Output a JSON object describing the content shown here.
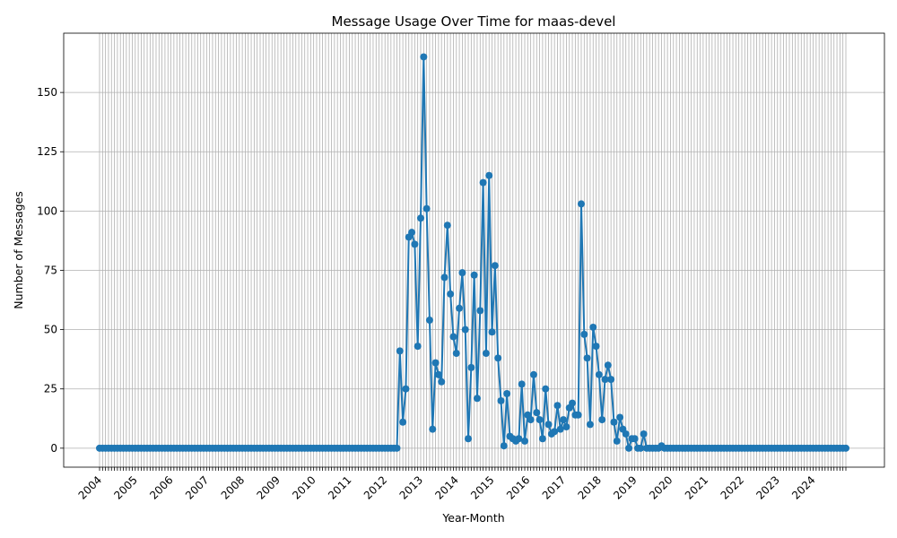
{
  "chart_data": {
    "type": "line",
    "title": "Message Usage Over Time for maas-devel",
    "xlabel": "Year-Month",
    "ylabel": "Number of Messages",
    "x_start": "2004-01",
    "x_end": "2024-12",
    "ylim": [
      -8,
      175
    ],
    "yticks": [
      0,
      25,
      50,
      75,
      100,
      125,
      150
    ],
    "year_ticks": [
      "2004",
      "2005",
      "2006",
      "2007",
      "2008",
      "2009",
      "2010",
      "2011",
      "2012",
      "2013",
      "2014",
      "2015",
      "2016",
      "2017",
      "2018",
      "2019",
      "2020",
      "2021",
      "2022",
      "2023",
      "2024"
    ],
    "grid": true,
    "color": "#1f77b4",
    "series": [
      {
        "values": [
          0,
          0,
          0,
          0,
          0,
          0,
          0,
          0,
          0,
          0,
          0,
          0,
          0,
          0,
          0,
          0,
          0,
          0,
          0,
          0,
          0,
          0,
          0,
          0,
          0,
          0,
          0,
          0,
          0,
          0,
          0,
          0,
          0,
          0,
          0,
          0,
          0,
          0,
          0,
          0,
          0,
          0,
          0,
          0,
          0,
          0,
          0,
          0,
          0,
          0,
          0,
          0,
          0,
          0,
          0,
          0,
          0,
          0,
          0,
          0,
          0,
          0,
          0,
          0,
          0,
          0,
          0,
          0,
          0,
          0,
          0,
          0,
          0,
          0,
          0,
          0,
          0,
          0,
          0,
          0,
          0,
          0,
          0,
          0,
          0,
          0,
          0,
          0,
          0,
          0,
          0,
          0,
          0,
          0,
          0,
          0,
          0,
          0,
          0,
          0,
          0,
          41,
          11,
          25,
          89,
          91,
          86,
          43,
          97,
          165,
          101,
          54,
          8,
          36,
          31,
          28,
          72,
          94,
          65,
          47,
          40,
          59,
          74,
          50,
          4,
          34,
          73,
          21,
          58,
          112,
          40,
          115,
          49,
          77,
          38,
          20,
          1,
          23,
          5,
          4,
          3,
          4,
          27,
          3,
          14,
          12,
          31,
          15,
          12,
          4,
          25,
          10,
          6,
          7,
          18,
          8,
          12,
          9,
          17,
          19,
          14,
          14,
          103,
          48,
          38,
          10,
          51,
          43,
          31,
          12,
          29,
          35,
          29,
          11,
          3,
          13,
          8,
          6,
          0,
          4,
          4,
          0,
          0,
          6,
          0,
          0,
          0,
          0,
          0,
          1,
          0,
          0,
          0,
          0,
          0,
          0,
          0,
          0,
          0,
          0,
          0,
          0,
          0,
          0,
          0,
          0,
          0,
          0,
          0,
          0,
          0,
          0,
          0,
          0,
          0,
          0,
          0,
          0,
          0,
          0,
          0,
          0,
          0,
          0,
          0,
          0,
          0,
          0,
          0,
          0,
          0,
          0,
          0,
          0,
          0,
          0,
          0,
          0,
          0,
          0,
          0,
          0,
          0,
          0,
          0,
          0,
          0,
          0,
          0,
          0,
          0,
          0
        ]
      }
    ]
  }
}
